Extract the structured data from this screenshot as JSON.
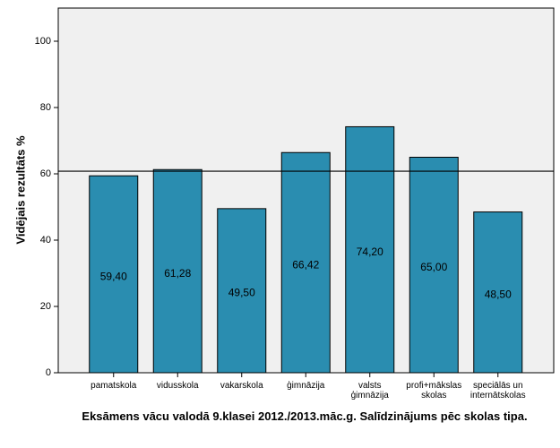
{
  "chart_data": {
    "type": "bar",
    "title": "Eksāmens vācu valodā 9.klasei 2012./2013.māc.g. Salīdzinājums pēc skolas tipa.",
    "y_label": "Vidējais rezultāts %",
    "categories": [
      "pamatskola",
      "vidusskola",
      "vakarskola",
      "ģimnāzija",
      "valsts\nģimnāzija",
      "profi+mākslas\nskolas",
      "speciālās un\ninternātskolas"
    ],
    "values": [
      59.4,
      61.28,
      49.5,
      66.42,
      74.2,
      65.0,
      48.5
    ],
    "value_labels": [
      "59,40",
      "61,28",
      "49,50",
      "66,42",
      "74,20",
      "65,00",
      "48,50"
    ],
    "color": "#2a8db0",
    "ylim": [
      0,
      110
    ],
    "yticks": [
      0,
      20,
      40,
      60,
      80,
      100
    ],
    "reference_line": 60.8
  }
}
